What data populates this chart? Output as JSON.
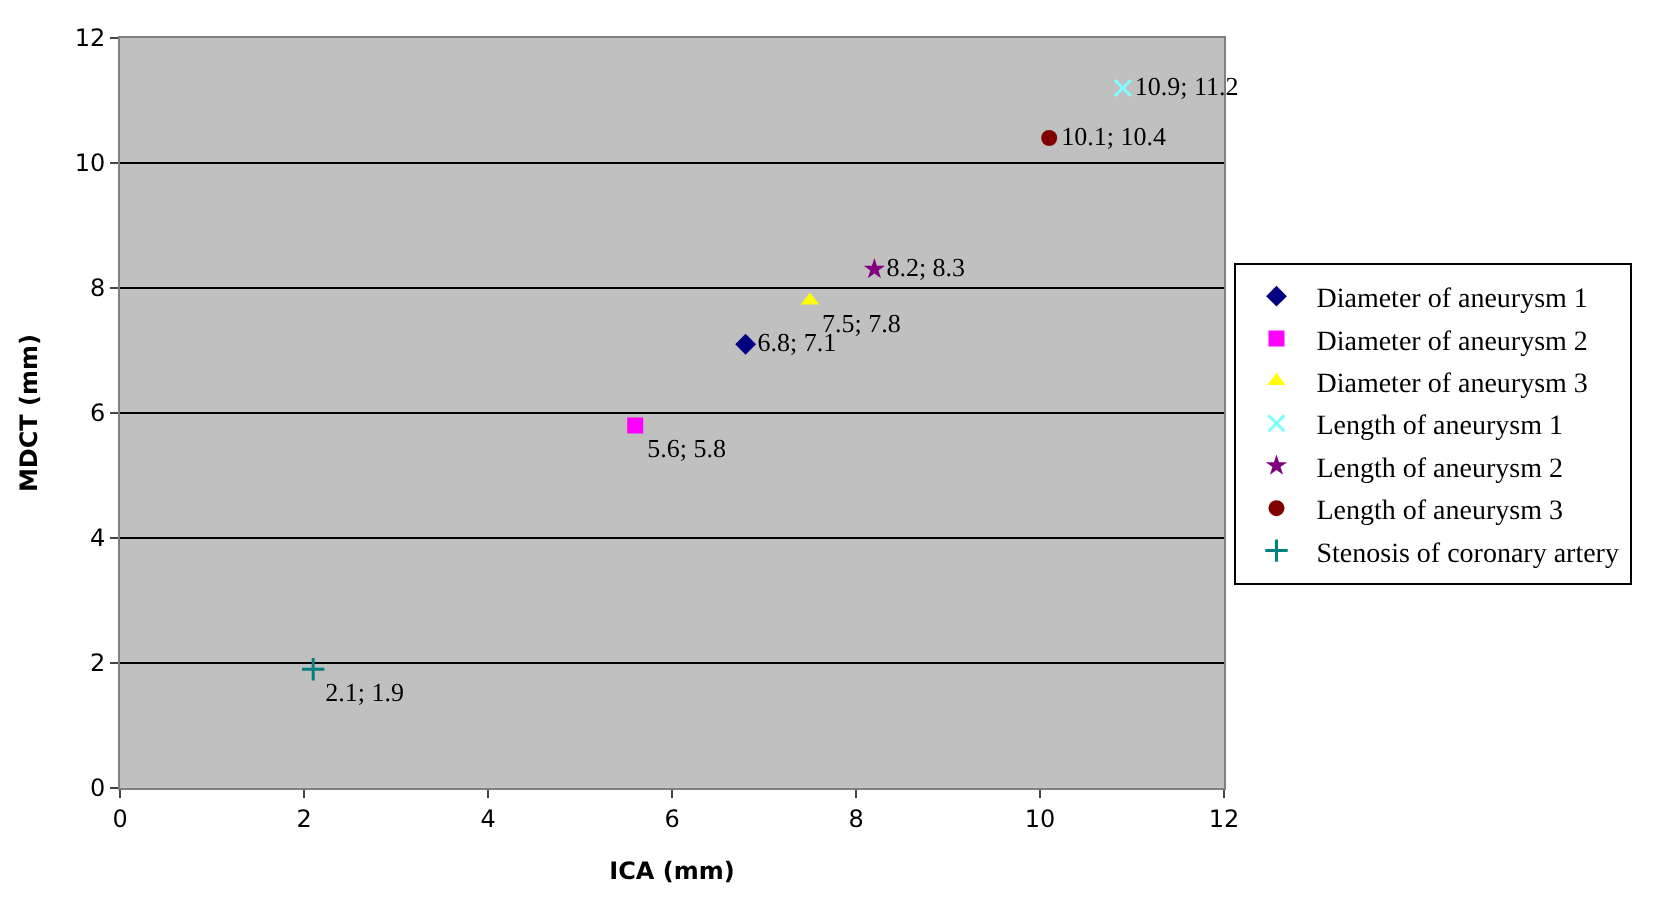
{
  "chart_data": {
    "type": "scatter",
    "xlabel": "ICA (mm)",
    "ylabel": "MDCT (mm)",
    "xlim": [
      0,
      12
    ],
    "xticks": [
      0,
      2,
      4,
      6,
      8,
      10,
      12
    ],
    "ylim": [
      0,
      12
    ],
    "yticks": [
      0,
      2,
      4,
      6,
      8,
      10,
      12
    ],
    "grid": "y",
    "legend": "right",
    "series": [
      {
        "name": "Diameter of aneurysm 1",
        "color": "#000080",
        "marker": "diamond",
        "x": [
          6.8
        ],
        "values": [
          7.1
        ],
        "value_labels": [
          "6.8; 7.1"
        ]
      },
      {
        "name": "Diameter of aneurysm 2",
        "color": "#ff00ff",
        "marker": "square",
        "x": [
          5.6
        ],
        "values": [
          5.8
        ],
        "value_labels": [
          "5.6; 5.8"
        ]
      },
      {
        "name": "Diameter of aneurysm 3",
        "color": "#ffff00",
        "marker": "triangle",
        "x": [
          7.5
        ],
        "values": [
          7.8
        ],
        "value_labels": [
          "7.5; 7.8"
        ]
      },
      {
        "name": "Length of aneurysm 1",
        "color": "#80ffff",
        "marker": "cross",
        "x": [
          10.9
        ],
        "values": [
          11.2
        ],
        "value_labels": [
          "10.9; 11.2"
        ]
      },
      {
        "name": "Length of aneurysm 2",
        "color": "#800080",
        "marker": "star",
        "x": [
          8.2
        ],
        "values": [
          8.3
        ],
        "value_labels": [
          "8.2; 8.3"
        ]
      },
      {
        "name": "Length of aneurysm 3",
        "color": "#800000",
        "marker": "circle",
        "x": [
          10.1
        ],
        "values": [
          10.4
        ],
        "value_labels": [
          "10.1; 10.4"
        ]
      },
      {
        "name": "Stenosis of coronary artery",
        "color": "#008080",
        "marker": "plus",
        "x": [
          2.1
        ],
        "values": [
          1.9
        ],
        "value_labels": [
          "2.1; 1.9"
        ]
      }
    ]
  }
}
